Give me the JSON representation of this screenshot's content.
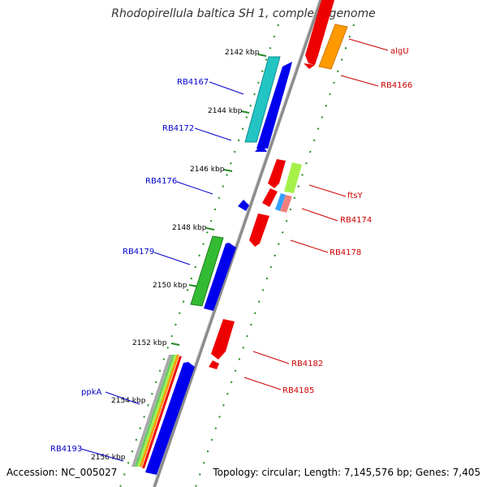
{
  "title": "Rhodopirellula baltica SH 1, complete genome",
  "footer": {
    "accession": "Accession: NC_005027",
    "topology": "Topology: circular; Length: 7,145,576 bp; Genes: 7,405"
  },
  "colors": {
    "backbone": "#8c8c8c",
    "tick_green": "#228b22",
    "blue_label": "#0000cc",
    "red_label": "#cc0000",
    "cyan": "#22c4c4",
    "blue": "#0000ee",
    "red": "#ee0000",
    "orange": "#ff9900",
    "green": "#33bb33",
    "lime": "#a6f04a",
    "pink": "#f08080",
    "light_blue": "#33a0ff"
  },
  "ticks": [
    "2142 kbp",
    "2144 kbp",
    "2146 kbp",
    "2148 kbp",
    "2150 kbp",
    "2152 kbp",
    "2154 kbp",
    "2156 kbp"
  ],
  "genes_left": [
    "RB4167",
    "RB4172",
    "RB4176",
    "RB4179",
    "ppkA",
    "RB4193"
  ],
  "genes_right": [
    "algU",
    "RB4166",
    "ftsY",
    "RB4174",
    "RB4178",
    "RB4182",
    "RB4185"
  ]
}
